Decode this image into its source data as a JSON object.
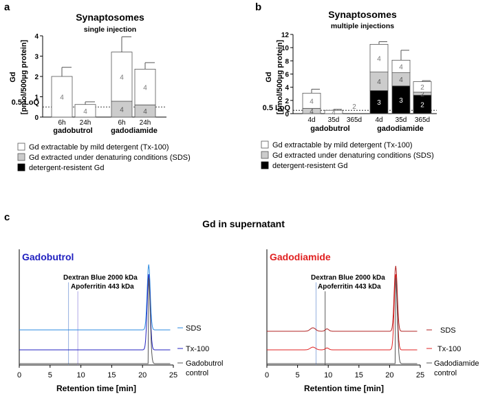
{
  "panel_a": {
    "letter": "a",
    "title": "Synaptosomes",
    "subtitle": "single injection",
    "ylabel_1": "Gd",
    "ylabel_2": "[pmol/500µg protein]",
    "loq_label": "0.5 LoQ",
    "group_labels": [
      "gadobutrol",
      "gadodiamide"
    ],
    "time_labels": [
      "6h",
      "24h",
      "6h",
      "24h"
    ]
  },
  "panel_b": {
    "letter": "b",
    "title": "Synaptosomes",
    "subtitle": "multiple injections",
    "ylabel_1": "Gd",
    "ylabel_2": "[pmol/500µg protein]",
    "loq_label": "0.5 LoQ",
    "group_labels": [
      "gadobutrol",
      "gadodiamide"
    ],
    "time_labels": [
      "4d",
      "35d",
      "365d",
      "4d",
      "35d",
      "365d"
    ]
  },
  "legend": {
    "items": [
      {
        "label": "Gd extractable by mild detergent (Tx-100)",
        "color": "#ffffff"
      },
      {
        "label": "Gd extracted under denaturing conditions (SDS)",
        "color": "#cccccc"
      },
      {
        "label": "detergent-resistent Gd",
        "color": "#000000"
      }
    ]
  },
  "panel_c": {
    "letter": "c",
    "title": "Gd in supernatant",
    "left": {
      "name": "Gadobutrol",
      "color": "#1f1fbf"
    },
    "right": {
      "name": "Gadodiamide",
      "color": "#e02020"
    },
    "marker_1": "Dextran Blue 2000 kDa",
    "marker_2": "Apoferritin 443 kDa",
    "xlabel": "Retention time [min]",
    "trace_labels_left": [
      "SDS",
      "Tx-100",
      "Gadobutrol",
      "control"
    ],
    "trace_labels_right": [
      "SDS",
      "Tx-100",
      "Gadodiamide",
      "control"
    ]
  },
  "chart_data": [
    {
      "type": "bar",
      "stacked": true,
      "categories": [
        "6h",
        "24h",
        "6h",
        "24h"
      ],
      "groups": [
        "gadobutrol",
        "gadobutrol",
        "gadodiamide",
        "gadodiamide"
      ],
      "yticks": [
        0,
        1,
        2,
        3,
        4
      ],
      "ylim": [
        0,
        4
      ],
      "loq": 0.5,
      "series": [
        {
          "name": "detergent-resistent Gd",
          "values": [
            0,
            0,
            0,
            0
          ],
          "n": [
            "",
            "",
            "",
            ""
          ]
        },
        {
          "name": "Gd extracted under denaturing conditions (SDS)",
          "values": [
            0,
            0,
            0.78,
            0.6
          ],
          "n": [
            "",
            "",
            "4",
            "4"
          ],
          "err": [
            0,
            0,
            0.12,
            0.08
          ]
        },
        {
          "name": "Gd extractable by mild detergent (Tx-100)",
          "values": [
            2.0,
            0.62,
            2.42,
            1.76
          ],
          "n": [
            "4",
            "4",
            "4",
            "4"
          ],
          "err": [
            0.45,
            0.13,
            0.75,
            0.32
          ]
        }
      ]
    },
    {
      "type": "bar",
      "stacked": true,
      "categories": [
        "4d",
        "35d",
        "365d",
        "4d",
        "35d",
        "365d"
      ],
      "groups": [
        "gadobutrol",
        "gadobutrol",
        "gadobutrol",
        "gadodiamide",
        "gadodiamide",
        "gadodiamide"
      ],
      "yticks": [
        0,
        2,
        4,
        6,
        8,
        10,
        12
      ],
      "ylim": [
        0,
        12
      ],
      "loq": 0.5,
      "series": [
        {
          "name": "detergent-resistent Gd",
          "values": [
            0,
            0,
            0,
            3.5,
            4.2,
            2.8
          ],
          "n": [
            "",
            "",
            "",
            "3",
            "3",
            "2"
          ],
          "err": [
            0,
            0,
            0,
            0.15,
            0.35,
            0.2
          ]
        },
        {
          "name": "Gd extracted under denaturing conditions (SDS)",
          "values": [
            0.8,
            0,
            0,
            2.8,
            2.0,
            0.45
          ],
          "n": [
            "4",
            "",
            "",
            "4",
            "4",
            "2"
          ],
          "err": [
            0.15,
            0,
            0,
            0.6,
            0.5,
            0.1
          ]
        },
        {
          "name": "Gd extractable by mild detergent (Tx-100)",
          "values": [
            2.3,
            0.5,
            0,
            4.2,
            1.9,
            1.6
          ],
          "n": [
            "4",
            "4",
            "2",
            "4",
            "4",
            "2"
          ],
          "err": [
            0.6,
            0.15,
            0,
            0.4,
            1.5,
            0.15
          ]
        }
      ]
    },
    {
      "type": "line",
      "xlim": [
        0,
        25
      ],
      "xticks": [
        0,
        5,
        10,
        15,
        20,
        25
      ],
      "xlabel": "Retention time [min]",
      "markers": [
        {
          "name": "Dextran Blue 2000 kDa",
          "x": 8.0
        },
        {
          "name": "Apoferritin 443 kDa",
          "x": 9.5
        }
      ],
      "peak_x": 21.0
    }
  ]
}
